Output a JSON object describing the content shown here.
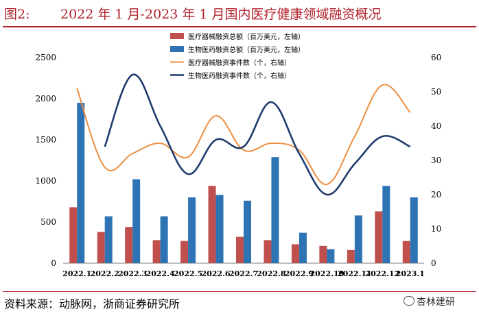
{
  "header": {
    "figure_label": "图2:",
    "title": "2022 年 1 月-2023 年 1 月国内医疗健康领域融资概况"
  },
  "footer": {
    "source": "资料来源：动脉网，浙商证券研究所",
    "watermark": "杏林建研"
  },
  "colors": {
    "accent": "#b0202a",
    "bar_medical": "#c0504d",
    "bar_bio": "#2e74b5",
    "line_medical": "#ed8e3e",
    "line_bio": "#1f3a6e"
  },
  "chart_data": {
    "type": "bar-line-combo",
    "categories": [
      "2022.1",
      "2022.2",
      "2022.3",
      "2022.4",
      "2022.5",
      "2022.6",
      "2022.7",
      "2022.8",
      "2022.9",
      "2022.10",
      "2022.11",
      "2022.12",
      "2023.1"
    ],
    "series": [
      {
        "name": "医疗器械融资总额（百万美元，左轴）",
        "type": "bar",
        "axis": "left",
        "values": [
          680,
          380,
          440,
          280,
          270,
          940,
          320,
          280,
          230,
          210,
          160,
          630,
          270
        ]
      },
      {
        "name": "生物医药融资总额（百万美元，左轴）",
        "type": "bar",
        "axis": "left",
        "values": [
          1950,
          570,
          1020,
          570,
          800,
          830,
          760,
          1290,
          370,
          170,
          580,
          940,
          800
        ]
      },
      {
        "name": "医疗器械融资事件数（个，右轴）",
        "type": "line",
        "axis": "right",
        "values": [
          51,
          28,
          32,
          35,
          31,
          43,
          33,
          35,
          33,
          23,
          37,
          52,
          44
        ]
      },
      {
        "name": "生物医药融资事件数（个，右轴）",
        "type": "line",
        "axis": "right",
        "values": [
          null,
          34,
          55,
          40,
          26,
          36,
          34,
          47,
          32,
          20,
          29,
          37,
          34
        ]
      }
    ],
    "y_left": {
      "min": 0,
      "max": 2500,
      "ticks": [
        0,
        500,
        1000,
        1500,
        2000,
        2500
      ]
    },
    "y_right": {
      "min": 0,
      "max": 60,
      "ticks": [
        0,
        10,
        20,
        30,
        40,
        50,
        60
      ]
    },
    "legend_position": "top-center",
    "grid": false
  }
}
